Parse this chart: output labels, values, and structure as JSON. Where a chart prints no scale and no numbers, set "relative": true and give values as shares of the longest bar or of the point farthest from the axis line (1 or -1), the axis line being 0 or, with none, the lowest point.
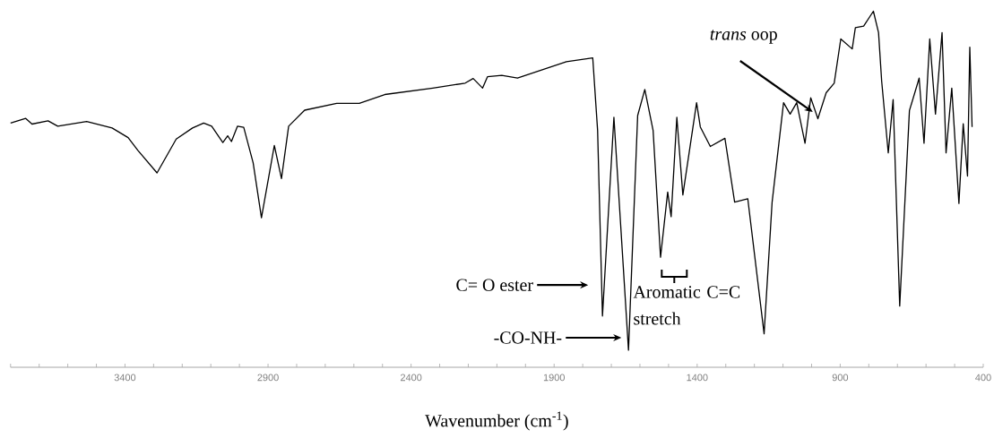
{
  "chart_data": {
    "type": "line",
    "relative": true,
    "xlabel": "Wavenumber (cm$^{-1}$)",
    "x": [
      3800,
      3747,
      3725,
      3669,
      3635,
      3534,
      3445,
      3389,
      3355,
      3288,
      3221,
      3164,
      3125,
      3097,
      3058,
      3041,
      3028,
      3007,
      2985,
      2952,
      2923,
      2878,
      2853,
      2828,
      2772,
      2660,
      2581,
      2492,
      2324,
      2211,
      2183,
      2150,
      2133,
      2083,
      2028,
      1857,
      1765,
      1748,
      1731,
      1691,
      1640,
      1608,
      1583,
      1554,
      1528,
      1503,
      1491,
      1471,
      1450,
      1402,
      1389,
      1354,
      1303,
      1269,
      1223,
      1166,
      1138,
      1098,
      1075,
      1052,
      1023,
      1003,
      978,
      949,
      921,
      898,
      858,
      847,
      818,
      784,
      766,
      755,
      732,
      715,
      692,
      658,
      624,
      607,
      587,
      567,
      544,
      530,
      510,
      485,
      470,
      455,
      447,
      439
    ],
    "series": [
      {
        "color": "#000000",
        "values": [
          0.686,
          0.699,
          0.683,
          0.692,
          0.677,
          0.69,
          0.672,
          0.645,
          0.609,
          0.546,
          0.641,
          0.672,
          0.686,
          0.677,
          0.631,
          0.65,
          0.634,
          0.677,
          0.674,
          0.574,
          0.42,
          0.623,
          0.53,
          0.677,
          0.722,
          0.741,
          0.741,
          0.766,
          0.784,
          0.798,
          0.811,
          0.784,
          0.816,
          0.82,
          0.812,
          0.858,
          0.869,
          0.665,
          0.144,
          0.702,
          0.048,
          0.707,
          0.78,
          0.665,
          0.309,
          0.492,
          0.423,
          0.702,
          0.484,
          0.743,
          0.675,
          0.62,
          0.643,
          0.464,
          0.473,
          0.094,
          0.464,
          0.743,
          0.711,
          0.743,
          0.629,
          0.757,
          0.698,
          0.771,
          0.798,
          0.922,
          0.894,
          0.954,
          0.958,
          1.0,
          0.94,
          0.803,
          0.602,
          0.752,
          0.172,
          0.721,
          0.812,
          0.629,
          0.922,
          0.711,
          0.94,
          0.602,
          0.784,
          0.46,
          0.684,
          0.537,
          0.899,
          0.675
        ]
      }
    ],
    "xlim": [
      3800,
      400
    ],
    "xticks": [
      {
        "value": 3800,
        "label": null
      },
      {
        "value": 3700,
        "label": null
      },
      {
        "value": 3600,
        "label": null
      },
      {
        "value": 3500,
        "label": null
      },
      3400,
      {
        "value": 3300,
        "label": null
      },
      {
        "value": 3200,
        "label": null
      },
      {
        "value": 3100,
        "label": null
      },
      {
        "value": 3000,
        "label": null
      },
      2900,
      {
        "value": 2800,
        "label": null
      },
      {
        "value": 2700,
        "label": null
      },
      {
        "value": 2600,
        "label": null
      },
      {
        "value": 2500,
        "label": null
      },
      2400,
      {
        "value": 2300,
        "label": null
      },
      {
        "value": 2200,
        "label": null
      },
      {
        "value": 2100,
        "label": null
      },
      {
        "value": 2000,
        "label": null
      },
      1900,
      {
        "value": 1800,
        "label": null
      },
      {
        "value": 1700,
        "label": null
      },
      {
        "value": 1600,
        "label": null
      },
      {
        "value": 1500,
        "label": null
      },
      1400,
      {
        "value": 1300,
        "label": null
      },
      {
        "value": 1200,
        "label": null
      },
      {
        "value": 1100,
        "label": null
      },
      {
        "value": 1000,
        "label": null
      },
      900,
      {
        "value": 800,
        "label": null
      },
      {
        "value": 700,
        "label": null
      },
      {
        "value": 600,
        "label": null
      },
      {
        "value": 500,
        "label": null
      },
      400
    ],
    "annotations": [
      "C= O ester",
      "-CO-NH-",
      "Aromatic C=C stretch",
      {
        "text": "*trans* oop",
        "x": 996,
        "y": 0.717
      }
    ],
    "grid": false,
    "marker": "none",
    "line_style": "solid"
  }
}
